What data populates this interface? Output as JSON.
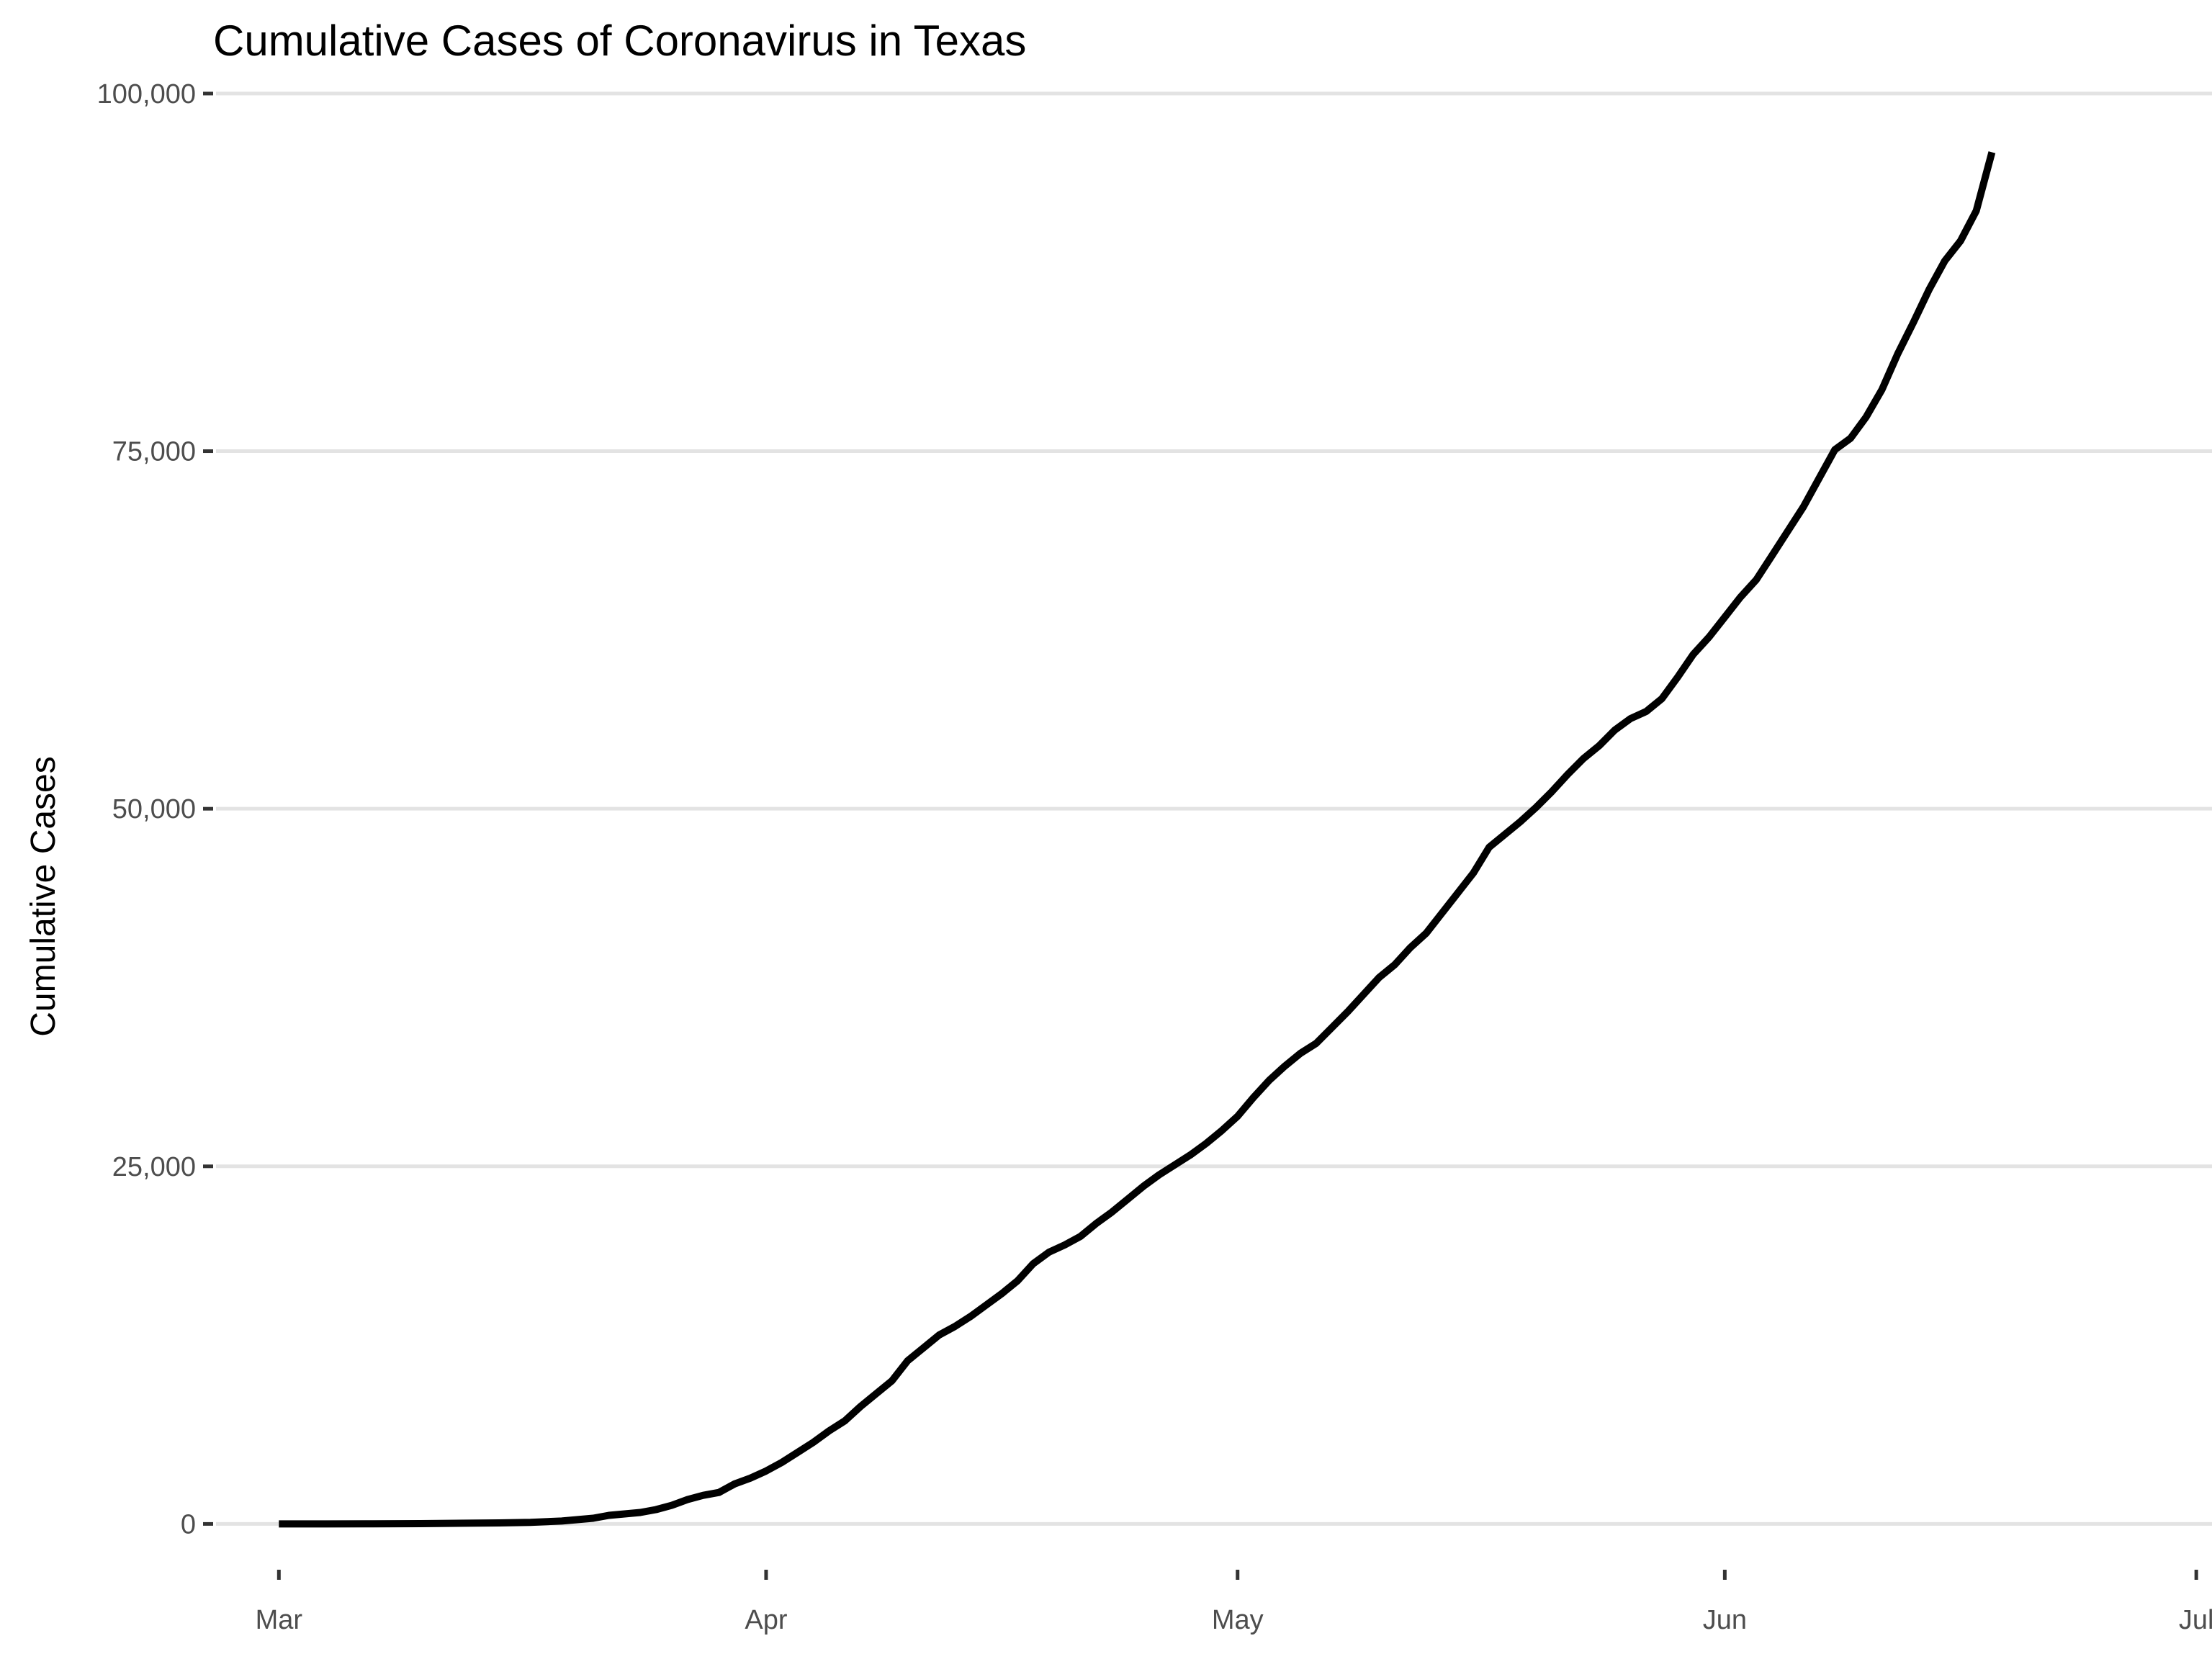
{
  "chart_data": {
    "type": "line",
    "title": "Cumulative Cases of Coronavirus in Texas",
    "xlabel": "",
    "ylabel": "Cumulative Cases",
    "x_tick_labels": [
      {
        "date": "2020-03-01",
        "label": "Mar"
      },
      {
        "date": "2020-04-01",
        "label": "Apr"
      },
      {
        "date": "2020-05-01",
        "label": "May"
      },
      {
        "date": "2020-06-01",
        "label": "Jun"
      },
      {
        "date": "2020-07-01",
        "label": "Jul"
      }
    ],
    "y_ticks": [
      0,
      25000,
      50000,
      75000,
      100000
    ],
    "y_tick_labels": [
      "0",
      "25,000",
      "50,000",
      "75,000",
      "100,000"
    ],
    "xlim": [
      "2020-02-26",
      "2020-07-02"
    ],
    "ylim": [
      -3000,
      100500
    ],
    "grid": "horizontal",
    "legend": "none",
    "line_color": "#000000",
    "series": [
      {
        "points": [
          [
            "2020-03-01",
            0
          ],
          [
            "2020-03-04",
            0
          ],
          [
            "2020-03-07",
            10
          ],
          [
            "2020-03-10",
            20
          ],
          [
            "2020-03-13",
            50
          ],
          [
            "2020-03-15",
            70
          ],
          [
            "2020-03-17",
            110
          ],
          [
            "2020-03-19",
            200
          ],
          [
            "2020-03-21",
            400
          ],
          [
            "2020-03-22",
            600
          ],
          [
            "2020-03-24",
            800
          ],
          [
            "2020-03-25",
            1000
          ],
          [
            "2020-03-26",
            1300
          ],
          [
            "2020-03-27",
            1700
          ],
          [
            "2020-03-28",
            2000
          ],
          [
            "2020-03-29",
            2200
          ],
          [
            "2020-03-30",
            2800
          ],
          [
            "2020-03-31",
            3200
          ],
          [
            "2020-04-01",
            3700
          ],
          [
            "2020-04-02",
            4300
          ],
          [
            "2020-04-03",
            5000
          ],
          [
            "2020-04-04",
            5700
          ],
          [
            "2020-04-05",
            6500
          ],
          [
            "2020-04-06",
            7200
          ],
          [
            "2020-04-07",
            8200
          ],
          [
            "2020-04-08",
            9100
          ],
          [
            "2020-04-09",
            10000
          ],
          [
            "2020-04-10",
            11400
          ],
          [
            "2020-04-11",
            12300
          ],
          [
            "2020-04-12",
            13200
          ],
          [
            "2020-04-13",
            13800
          ],
          [
            "2020-04-14",
            14500
          ],
          [
            "2020-04-15",
            15300
          ],
          [
            "2020-04-16",
            16100
          ],
          [
            "2020-04-17",
            17000
          ],
          [
            "2020-04-18",
            18200
          ],
          [
            "2020-04-19",
            19000
          ],
          [
            "2020-04-20",
            19500
          ],
          [
            "2020-04-21",
            20100
          ],
          [
            "2020-04-22",
            21000
          ],
          [
            "2020-04-23",
            21800
          ],
          [
            "2020-04-24",
            22700
          ],
          [
            "2020-04-25",
            23600
          ],
          [
            "2020-04-26",
            24400
          ],
          [
            "2020-04-27",
            25100
          ],
          [
            "2020-04-28",
            25800
          ],
          [
            "2020-04-29",
            26600
          ],
          [
            "2020-04-30",
            27500
          ],
          [
            "2020-05-01",
            28500
          ],
          [
            "2020-05-02",
            29800
          ],
          [
            "2020-05-03",
            31000
          ],
          [
            "2020-05-04",
            32000
          ],
          [
            "2020-05-05",
            32900
          ],
          [
            "2020-05-06",
            33600
          ],
          [
            "2020-05-07",
            34700
          ],
          [
            "2020-05-08",
            35800
          ],
          [
            "2020-05-09",
            37000
          ],
          [
            "2020-05-10",
            38200
          ],
          [
            "2020-05-11",
            39100
          ],
          [
            "2020-05-12",
            40300
          ],
          [
            "2020-05-13",
            41300
          ],
          [
            "2020-05-14",
            42700
          ],
          [
            "2020-05-15",
            44100
          ],
          [
            "2020-05-16",
            45500
          ],
          [
            "2020-05-17",
            47300
          ],
          [
            "2020-05-18",
            48200
          ],
          [
            "2020-05-19",
            49100
          ],
          [
            "2020-05-20",
            50100
          ],
          [
            "2020-05-21",
            51200
          ],
          [
            "2020-05-22",
            52400
          ],
          [
            "2020-05-23",
            53500
          ],
          [
            "2020-05-24",
            54400
          ],
          [
            "2020-05-25",
            55500
          ],
          [
            "2020-05-26",
            56300
          ],
          [
            "2020-05-27",
            56800
          ],
          [
            "2020-05-28",
            57700
          ],
          [
            "2020-05-29",
            59200
          ],
          [
            "2020-05-30",
            60800
          ],
          [
            "2020-05-31",
            62000
          ],
          [
            "2020-06-01",
            63400
          ],
          [
            "2020-06-02",
            64800
          ],
          [
            "2020-06-03",
            66000
          ],
          [
            "2020-06-04",
            67700
          ],
          [
            "2020-06-05",
            69400
          ],
          [
            "2020-06-06",
            71100
          ],
          [
            "2020-06-07",
            73100
          ],
          [
            "2020-06-08",
            75100
          ],
          [
            "2020-06-09",
            75900
          ],
          [
            "2020-06-10",
            77400
          ],
          [
            "2020-06-11",
            79300
          ],
          [
            "2020-06-12",
            81800
          ],
          [
            "2020-06-13",
            84000
          ],
          [
            "2020-06-14",
            86300
          ],
          [
            "2020-06-15",
            88300
          ],
          [
            "2020-06-16",
            89700
          ],
          [
            "2020-06-17",
            91800
          ],
          [
            "2020-06-18",
            95900
          ]
        ]
      }
    ]
  }
}
